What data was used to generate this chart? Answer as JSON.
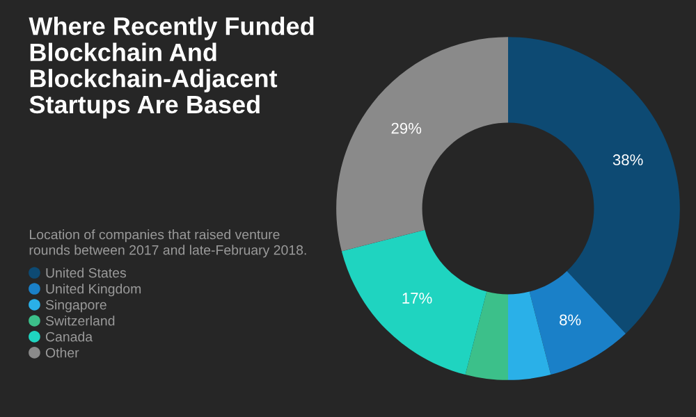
{
  "chart_data": {
    "type": "donut",
    "title": "Where Recently Funded Blockchain And Blockchain-Adjacent Startups Are Based",
    "subtitle": "Location of companies that raised venture rounds between 2017 and late-February 2018.",
    "categories": [
      "United States",
      "United Kingdom",
      "Singapore",
      "Switzerland",
      "Canada",
      "Other"
    ],
    "values": [
      38,
      8,
      4,
      4,
      17,
      29
    ],
    "value_labels": [
      "38%",
      "8%",
      null,
      null,
      "17%",
      "29%"
    ],
    "colors": [
      "#0d4a73",
      "#1a80c8",
      "#2ab0e8",
      "#3cc08a",
      "#1fd4c0",
      "#8a8a8a"
    ],
    "legend": "left"
  }
}
